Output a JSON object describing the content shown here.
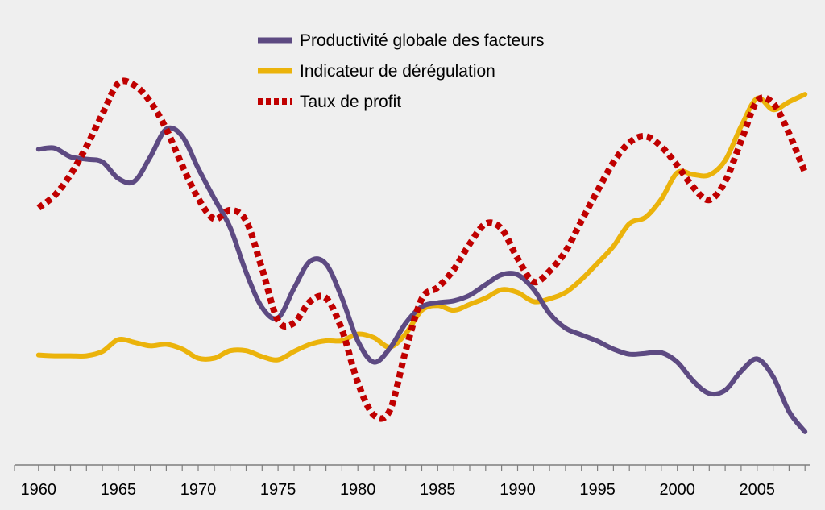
{
  "chart_data": {
    "type": "line",
    "title": "",
    "xlabel": "",
    "ylabel": "",
    "xlim": [
      1959,
      2009.3
    ],
    "ylim": [
      0,
      100
    ],
    "grid": false,
    "legend_position": "top-center",
    "x_ticks": [
      "1960",
      "1965",
      "1970",
      "1975",
      "1980",
      "1985",
      "1990",
      "1995",
      "2000",
      "2005"
    ],
    "x": [
      1960,
      1961,
      1962,
      1963,
      1964,
      1965,
      1966,
      1967,
      1968,
      1969,
      1970,
      1971,
      1972,
      1973,
      1974,
      1975,
      1976,
      1977,
      1978,
      1979,
      1980,
      1981,
      1982,
      1983,
      1984,
      1985,
      1986,
      1987,
      1988,
      1989,
      1990,
      1991,
      1992,
      1993,
      1994,
      1995,
      1996,
      1997,
      1998,
      1999,
      2000,
      2001,
      2002,
      2003,
      2004,
      2005,
      2006,
      2007,
      2008
    ],
    "series": [
      {
        "name": "Productivité globale des facteurs",
        "color": "#5d4a82",
        "style": "solid",
        "values": [
          75.7,
          76,
          73.8,
          73.2,
          72.5,
          68.3,
          67.6,
          73.8,
          80.8,
          79,
          70.9,
          63.3,
          55.9,
          44.6,
          35.7,
          33.1,
          40.6,
          47.4,
          46.7,
          38.1,
          27.2,
          21.9,
          25.4,
          31.8,
          35.9,
          36.9,
          37.4,
          38.8,
          41.5,
          44,
          44,
          40.3,
          34.2,
          30.5,
          28.8,
          27.2,
          25.2,
          23.9,
          24.1,
          24.3,
          21.9,
          17.1,
          14,
          14.8,
          19.6,
          22.7,
          18.2,
          9.4,
          4.3
        ]
      },
      {
        "name": "Indicateur de dérégulation",
        "color": "#ebb30b",
        "style": "solid",
        "values": [
          23.7,
          23.5,
          23.5,
          23.5,
          24.6,
          27.6,
          26.9,
          26,
          26.4,
          25.2,
          22.9,
          22.9,
          24.8,
          24.8,
          23.3,
          22.5,
          24.6,
          26.4,
          27.3,
          27.3,
          29,
          28.1,
          25.7,
          29.1,
          35,
          36.2,
          35,
          36.5,
          38.1,
          40.2,
          39.5,
          37.2,
          37.9,
          39.5,
          42.8,
          46.9,
          51.2,
          56.9,
          58.5,
          63.1,
          69.8,
          69.3,
          69.2,
          72.9,
          81.5,
          88.6,
          85.7,
          87.7,
          89.6
        ]
      },
      {
        "name": "Taux de profit",
        "color": "#c00000",
        "style": "dotted",
        "values": [
          60.9,
          64,
          69.3,
          76.4,
          84.6,
          92.4,
          91.9,
          87.7,
          80.8,
          71.6,
          63.3,
          58.1,
          60.3,
          57.6,
          45.5,
          32.4,
          31.8,
          37.2,
          38.1,
          30.1,
          16.7,
          8.5,
          9.7,
          24.9,
          37.9,
          40.8,
          45.3,
          51.8,
          56.9,
          55.6,
          48.1,
          42.2,
          44.9,
          49.9,
          57.6,
          65.2,
          72.4,
          77.4,
          79,
          76.4,
          71.6,
          66.1,
          62.9,
          67.6,
          77.8,
          87.9,
          87.3,
          79.7,
          69.8
        ]
      }
    ]
  }
}
